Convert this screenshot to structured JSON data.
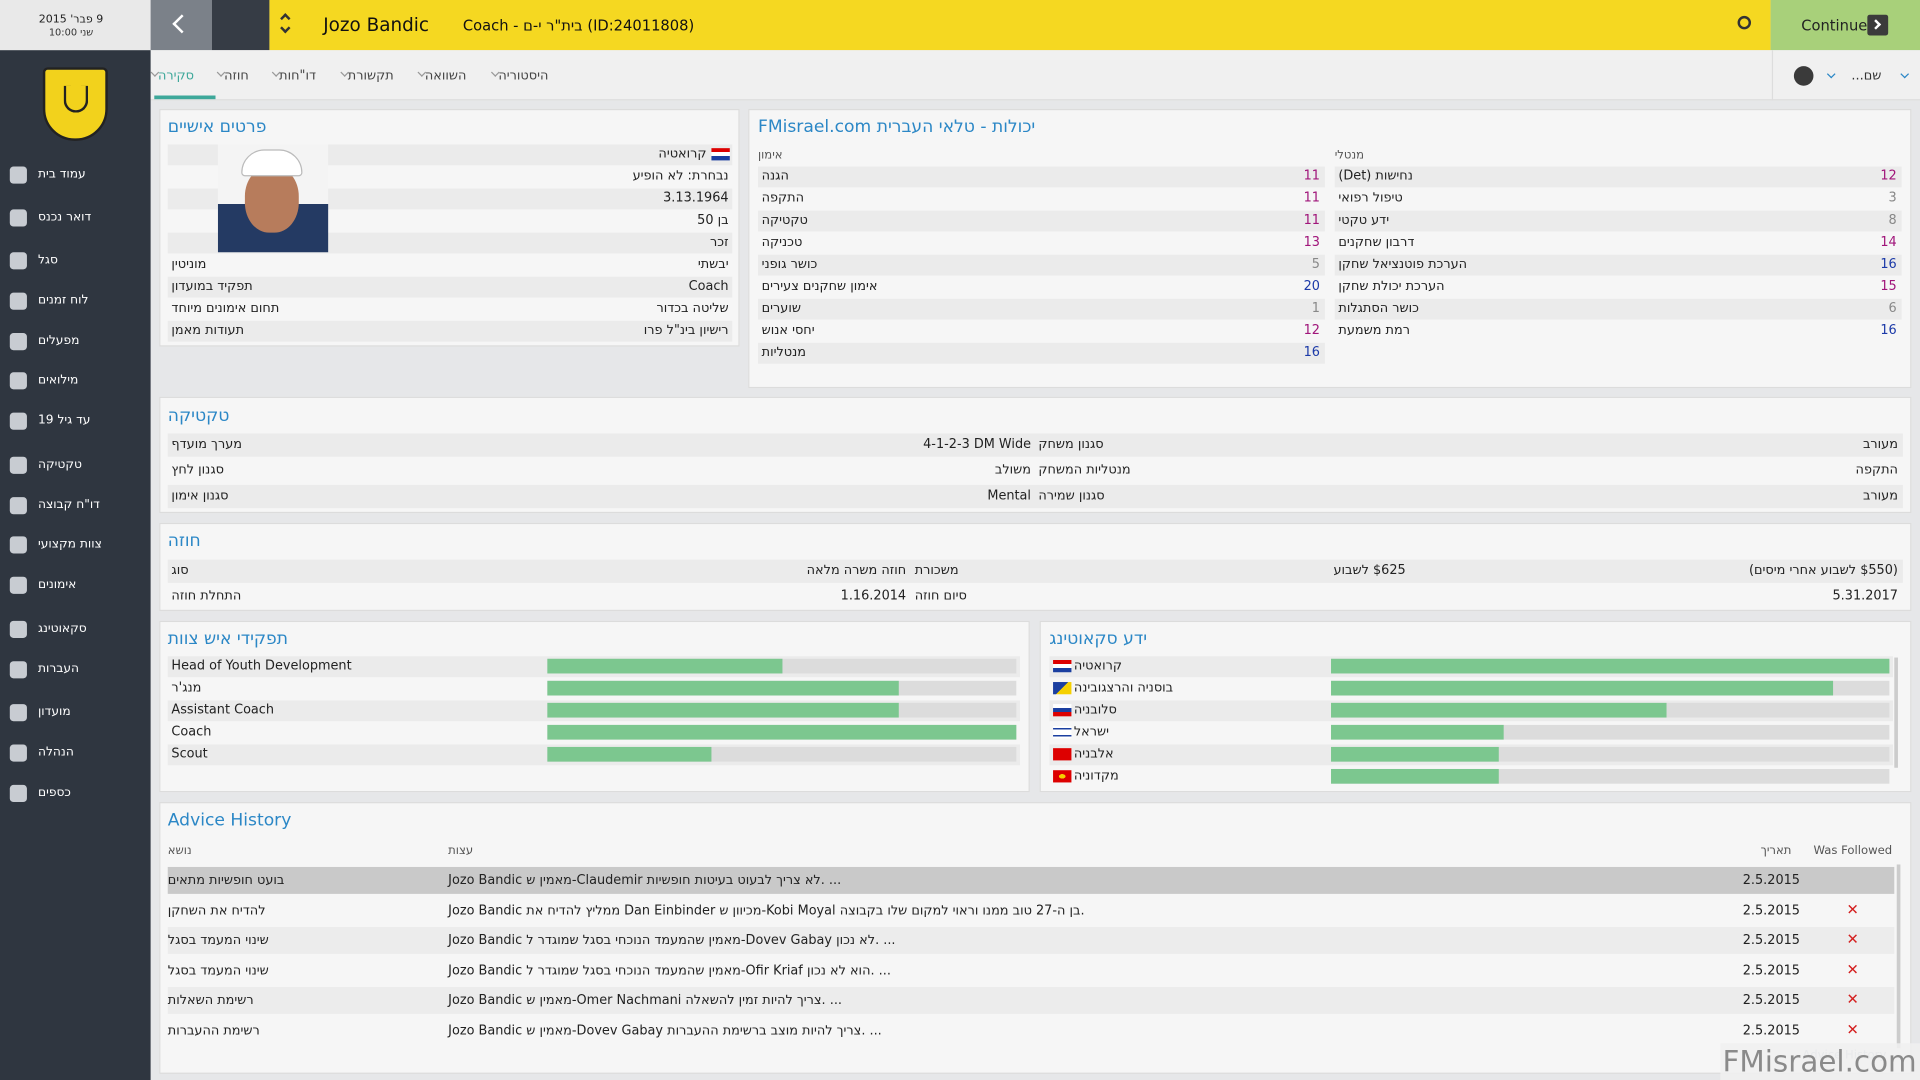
{
  "header": {
    "date": "9 פבר' 2015",
    "day_time": "שני 10:00",
    "name": "Jozo Bandic",
    "subtitle": "Coach - בית\"ר י-ם (ID:24011808)",
    "continue": "Continue"
  },
  "sidebar": [
    "עמוד בית",
    "דואר נכנס",
    "סגל",
    "לוח זמנים",
    "מפעלים",
    "מילואים",
    "עד גיל 19",
    "טקטיקה",
    "דו\"ח קבוצה",
    "צוות מקצועי",
    "אימונים",
    "סקאוטינג",
    "העברות",
    "מועדון",
    "הנהלה",
    "כספים"
  ],
  "tabs": [
    "סקירה",
    "חוזה",
    "דו\"חות",
    "תקשורת",
    "השוואה",
    "היסטוריה"
  ],
  "search": "שם...",
  "personal": {
    "title": "פרטים אישיים",
    "nationality": "קרואטיה",
    "lines": [
      "נבחרת: לא הופיע",
      "3.13.1964",
      "בן 50",
      "זכר"
    ],
    "rows": [
      {
        "label": "מוניטין",
        "value": "יבשתי"
      },
      {
        "label": "תפקיד במועדון",
        "value": "Coach"
      },
      {
        "label": "תחום אימונים מיוחד",
        "value": "שליטה בכדור"
      },
      {
        "label": "תעודות מאמן",
        "value": "רישיון בינ\"ל פרו"
      }
    ]
  },
  "attributes": {
    "title": "יכולות - טלאי העברית FMisrael.com",
    "columns": [
      {
        "header": "אימון",
        "items": [
          {
            "name": "הגנה",
            "value": 11
          },
          {
            "name": "התקפה",
            "value": 11
          },
          {
            "name": "טקטיקה",
            "value": 11
          },
          {
            "name": "טכניקה",
            "value": 13
          },
          {
            "name": "כושר גופני",
            "value": 5
          },
          {
            "name": "אימון שחקנים צעירים",
            "value": 20
          },
          {
            "name": "שוערים",
            "value": 1
          },
          {
            "name": "יחסי אנוש",
            "value": 12
          },
          {
            "name": "מנטליות",
            "value": 16
          }
        ]
      },
      {
        "header": "מנטלי",
        "items": [
          {
            "name": "נחישות (Det)",
            "value": 12
          },
          {
            "name": "טיפול רפואי",
            "value": 3
          },
          {
            "name": "ידע טקטי",
            "value": 8
          },
          {
            "name": "דרבון שחקנים",
            "value": 14
          },
          {
            "name": "הערכת פוטנציאל שחקן",
            "value": 16
          },
          {
            "name": "הערכת יכולת שחקן",
            "value": 15
          },
          {
            "name": "כושר הסתגלות",
            "value": 6
          },
          {
            "name": "רמת משמעת",
            "value": 16
          }
        ]
      }
    ]
  },
  "tactics": {
    "title": "טקטיקה",
    "rows": [
      [
        "מערך מועדף",
        "4-1-2-3 DM Wide",
        "סגנון משחק",
        "מעורב"
      ],
      [
        "סגנון לחץ",
        "משולב",
        "מנטליות המשחק",
        "התקפה"
      ],
      [
        "סגנון אימון",
        "Mental",
        "סגנון שמירה",
        "מעורב"
      ]
    ]
  },
  "contract": {
    "title": "חוזה",
    "rows": [
      [
        "סוג",
        "חוזה משרה מלאה",
        "משכורת",
        "$625 לשבוע",
        "($550 לשבוע אחרי מיסים)"
      ],
      [
        "התחלת חוזה",
        "1.16.2014",
        "סיום חוזה",
        "5.31.2017"
      ]
    ]
  },
  "staff": {
    "title": "תפקידי איש צוות",
    "roles": [
      {
        "name": "Head of Youth Development",
        "value": 50
      },
      {
        "name": "מנג'ר",
        "value": 75
      },
      {
        "name": "Assistant Coach",
        "value": 75
      },
      {
        "name": "Coach",
        "value": 100
      },
      {
        "name": "Scout",
        "value": 35
      }
    ]
  },
  "scouting": {
    "title": "ידע סקאוטינג",
    "countries": [
      {
        "name": "קרואטיה",
        "value": 100
      },
      {
        "name": "בוסניה והרצגובינה",
        "value": 90
      },
      {
        "name": "סלובניה",
        "value": 60
      },
      {
        "name": "ישראל",
        "value": 31
      },
      {
        "name": "אלבניה",
        "value": 30
      },
      {
        "name": "מקדוניה",
        "value": 30
      }
    ]
  },
  "advice": {
    "title": "Advice History",
    "headers": {
      "subject": "נושא",
      "advice": "עצות",
      "date": "תאריך",
      "followed": "Was Followed"
    },
    "rows": [
      {
        "subject": "בועט חופשיות מתאים",
        "advice": "Jozo Bandic מאמין ש-Claudemir לא צריך לבעוט בעיטות חופשיות. ...",
        "date": "2.5.2015"
      },
      {
        "subject": "להדיח את השחקן",
        "advice": "Jozo Bandic ממליץ להדיח את Dan Einbinder מכיוון ש-Kobi Moyal בן ה-27 טוב ממנו וראוי למקום שלו בקבוצה.",
        "date": "2.5.2015",
        "followed": "✕"
      },
      {
        "subject": "שינוי המעמד בסגל",
        "advice": "Jozo Bandic מאמין שהמעמד הנוכחי בסגל שמוגדר ל-Dovev Gabay לא נכון. ...",
        "date": "2.5.2015",
        "followed": "✕"
      },
      {
        "subject": "שינוי המעמד בסגל",
        "advice": "Jozo Bandic מאמין שהמעמד הנוכחי בסגל שמוגדר ל-Ofir Kriaf הוא לא נכון. ...",
        "date": "2.5.2015",
        "followed": "✕"
      },
      {
        "subject": "רשימת השאלות",
        "advice": "Jozo Bandic מאמין ש-Omer Nachmani צריך להיות זמין להשאלה. ...",
        "date": "2.5.2015",
        "followed": "✕"
      },
      {
        "subject": "רשימת ההעברות",
        "advice": "Jozo Bandic מאמין ש-Dovev Gabay צריך להיות מוצב ברשימת ההעברות. ...",
        "date": "2.5.2015",
        "followed": "✕"
      }
    ],
    "link": "Advice History"
  },
  "watermark": "FMisrael.com"
}
